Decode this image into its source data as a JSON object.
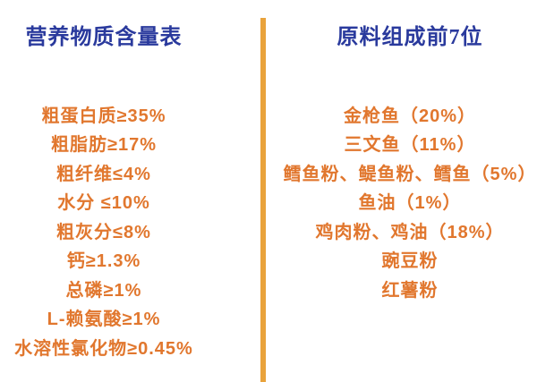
{
  "colors": {
    "background": "#FFFFFF",
    "divider_bar": "#E9A33C",
    "heading_text": "#2A3A9D",
    "item_text": "#E1772E"
  },
  "left_column": {
    "title": "营养物质含量表",
    "items": [
      "粗蛋白质≥35%",
      "粗脂肪≥17%",
      "粗纤维≤4%",
      "水分 ≤10%",
      "粗灰分≤8%",
      "钙≥1.3%",
      "总磷≥1%",
      "L-赖氨酸≥1%",
      "水溶性氯化物≥0.45%"
    ]
  },
  "right_column": {
    "title": "原料组成前7位",
    "items": [
      "金枪鱼（20%）",
      "三文鱼（11%）",
      "鳕鱼粉、鳀鱼粉、鳕鱼（5%）",
      "鱼油（1%）",
      "鸡肉粉、鸡油（18%）",
      "豌豆粉",
      "红薯粉"
    ]
  }
}
